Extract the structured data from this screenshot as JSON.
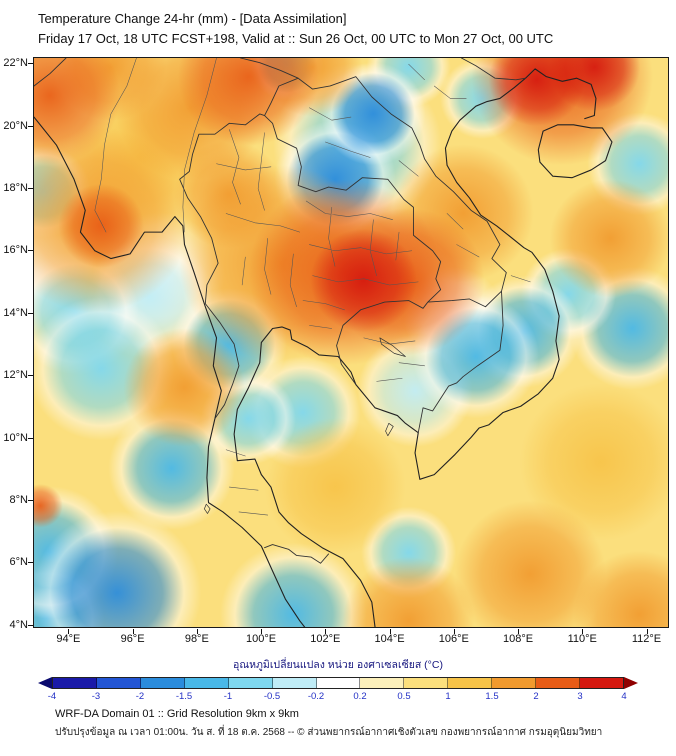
{
  "header": {
    "title_line1": "Temperature Change 24-hr (mm) - [Data Assimilation]",
    "title_line2": "Friday 17 Oct, 18 UTC FCST+198, Valid at :: Sun 26 Oct, 00 UTC to Mon 27 Oct, 00 UTC"
  },
  "footer": {
    "line1": "WRF-DA Domain 01 :: Grid Resolution 9km x 9km",
    "line2": "ปรับปรุงข้อมูล ณ เวลา 01:00น. วัน ส. ที่ 18 ต.ค. 2568 -- © ส่วนพยากรณ์อากาศเชิงตัวเลข กองพยากรณ์อากาศ กรมอุตุนิยมวิทยา"
  },
  "chart_data": {
    "type": "heatmap",
    "title": "Temperature Change 24-hr (mm) - [Data Assimilation]",
    "subtitle": "Friday 17 Oct, 18 UTC FCST+198, Valid at :: Sun 26 Oct, 00 UTC to Mon 27 Oct, 00 UTC",
    "region": "Thailand / Indochina WRF-DA Domain 01",
    "x_axis": {
      "range": [
        92.9,
        112.7
      ],
      "ticks": [
        94,
        96,
        98,
        100,
        102,
        104,
        106,
        108,
        110,
        112
      ],
      "tick_labels": [
        "94°E",
        "96°E",
        "98°E",
        "100°E",
        "102°E",
        "104°E",
        "106°E",
        "108°E",
        "110°E",
        "112°E"
      ]
    },
    "y_axis": {
      "range": [
        3.9,
        22.2
      ],
      "ticks": [
        4,
        6,
        8,
        10,
        12,
        14,
        16,
        18,
        20,
        22
      ],
      "tick_labels": [
        "4°N",
        "6°N",
        "8°N",
        "10°N",
        "12°N",
        "14°N",
        "16°N",
        "18°N",
        "20°N",
        "22°N"
      ]
    },
    "colorbar": {
      "label": "อุณหภูมิเปลี่ยนแปลง หน่วย องศาเซลเซียส (°C)",
      "ticks": [
        -4,
        -3,
        -2,
        -1.5,
        -1,
        -0.5,
        -0.2,
        0.2,
        0.5,
        1,
        1.5,
        2,
        3,
        4
      ],
      "segment_colors": [
        "#1a1aa8",
        "#2255d4",
        "#2b8cdc",
        "#49b8e8",
        "#7fd8ef",
        "#c0edf7",
        "#ffffff",
        "#fcf0bb",
        "#fbdf7d",
        "#f7c348",
        "#f19a2e",
        "#e85c16",
        "#d5180f"
      ],
      "under_color": "#0a0a6e",
      "over_color": "#8f0000"
    },
    "base_value": 0.7,
    "anomalies": [
      {
        "lon": 103.2,
        "lat": 15.05,
        "value": 3.5,
        "radius_deg": 1.05
      },
      {
        "lon": 102.6,
        "lat": 15.3,
        "value": 2.5,
        "radius_deg": 1.9
      },
      {
        "lon": 104.6,
        "lat": 15.0,
        "value": 2.2,
        "radius_deg": 1.5
      },
      {
        "lon": 100.6,
        "lat": 15.6,
        "value": 1.8,
        "radius_deg": 2.0
      },
      {
        "lon": 95.0,
        "lat": 16.8,
        "value": 2.8,
        "radius_deg": 0.85
      },
      {
        "lon": 94.8,
        "lat": 17.0,
        "value": 1.8,
        "radius_deg": 1.9
      },
      {
        "lon": 108.6,
        "lat": 21.5,
        "value": 3.3,
        "radius_deg": 0.95
      },
      {
        "lon": 110.4,
        "lat": 21.9,
        "value": 3.0,
        "radius_deg": 0.9
      },
      {
        "lon": 109.4,
        "lat": 21.6,
        "value": 2.0,
        "radius_deg": 1.8
      },
      {
        "lon": 99.6,
        "lat": 21.6,
        "value": 2.2,
        "radius_deg": 1.4
      },
      {
        "lon": 97.8,
        "lat": 20.6,
        "value": 1.6,
        "radius_deg": 1.5
      },
      {
        "lon": 93.4,
        "lat": 21.0,
        "value": 2.0,
        "radius_deg": 1.4
      },
      {
        "lon": 95.3,
        "lat": 21.9,
        "value": 1.8,
        "radius_deg": 1.1
      },
      {
        "lon": 101.6,
        "lat": 21.9,
        "value": 1.6,
        "radius_deg": 1.0
      },
      {
        "lon": 106.3,
        "lat": 17.2,
        "value": 1.6,
        "radius_deg": 1.4
      },
      {
        "lon": 110.9,
        "lat": 16.4,
        "value": 1.5,
        "radius_deg": 1.2
      },
      {
        "lon": 99.0,
        "lat": 17.8,
        "value": 1.6,
        "radius_deg": 1.1
      },
      {
        "lon": 96.2,
        "lat": 19.0,
        "value": 1.2,
        "radius_deg": 1.4
      },
      {
        "lon": 97.6,
        "lat": 11.6,
        "value": 1.5,
        "radius_deg": 1.2
      },
      {
        "lon": 102.3,
        "lat": 8.4,
        "value": 1.4,
        "radius_deg": 1.4
      },
      {
        "lon": 108.4,
        "lat": 5.6,
        "value": 1.8,
        "radius_deg": 1.5
      },
      {
        "lon": 104.6,
        "lat": 4.1,
        "value": 1.5,
        "radius_deg": 1.3
      },
      {
        "lon": 111.8,
        "lat": 4.3,
        "value": 1.6,
        "radius_deg": 1.3
      },
      {
        "lon": 110.6,
        "lat": 9.2,
        "value": 1.2,
        "radius_deg": 1.6
      },
      {
        "lon": 93.1,
        "lat": 7.8,
        "value": 2.6,
        "radius_deg": 0.45
      },
      {
        "lon": 103.5,
        "lat": 20.4,
        "value": -1.8,
        "radius_deg": 1.0
      },
      {
        "lon": 102.3,
        "lat": 18.3,
        "value": -1.6,
        "radius_deg": 1.15
      },
      {
        "lon": 103.0,
        "lat": 19.4,
        "value": -1.0,
        "radius_deg": 1.6
      },
      {
        "lon": 100.8,
        "lat": 22.0,
        "value": -1.2,
        "radius_deg": 0.7
      },
      {
        "lon": 106.9,
        "lat": 20.9,
        "value": -1.0,
        "radius_deg": 0.8
      },
      {
        "lon": 104.6,
        "lat": 21.9,
        "value": -0.8,
        "radius_deg": 0.8
      },
      {
        "lon": 99.0,
        "lat": 13.0,
        "value": -1.5,
        "radius_deg": 1.1
      },
      {
        "lon": 106.7,
        "lat": 12.6,
        "value": -1.5,
        "radius_deg": 1.2
      },
      {
        "lon": 108.2,
        "lat": 13.4,
        "value": -1.2,
        "radius_deg": 1.1
      },
      {
        "lon": 109.6,
        "lat": 14.6,
        "value": -0.8,
        "radius_deg": 0.9
      },
      {
        "lon": 111.6,
        "lat": 13.5,
        "value": -1.3,
        "radius_deg": 1.2
      },
      {
        "lon": 111.8,
        "lat": 18.8,
        "value": -0.9,
        "radius_deg": 1.0
      },
      {
        "lon": 95.0,
        "lat": 12.2,
        "value": -0.8,
        "radius_deg": 1.4
      },
      {
        "lon": 94.2,
        "lat": 14.0,
        "value": -0.7,
        "radius_deg": 1.2
      },
      {
        "lon": 93.2,
        "lat": 17.9,
        "value": -0.9,
        "radius_deg": 0.9
      },
      {
        "lon": 96.5,
        "lat": 14.5,
        "value": -0.5,
        "radius_deg": 1.2
      },
      {
        "lon": 97.2,
        "lat": 9.0,
        "value": -1.3,
        "radius_deg": 1.2
      },
      {
        "lon": 99.6,
        "lat": 10.6,
        "value": -0.8,
        "radius_deg": 0.9
      },
      {
        "lon": 101.3,
        "lat": 10.8,
        "value": -0.6,
        "radius_deg": 1.1
      },
      {
        "lon": 104.6,
        "lat": 6.3,
        "value": -0.6,
        "radius_deg": 0.9
      },
      {
        "lon": 95.5,
        "lat": 5.0,
        "value": -1.8,
        "radius_deg": 1.6
      },
      {
        "lon": 93.4,
        "lat": 6.3,
        "value": -1.5,
        "radius_deg": 1.3
      },
      {
        "lon": 93.3,
        "lat": 4.2,
        "value": -1.5,
        "radius_deg": 1.1
      },
      {
        "lon": 101.0,
        "lat": 4.3,
        "value": -1.2,
        "radius_deg": 1.4
      },
      {
        "lon": 104.8,
        "lat": 11.5,
        "value": -0.5,
        "radius_deg": 1.1
      },
      {
        "lon": 96.8,
        "lat": 15.2,
        "value": 0.0,
        "radius_deg": 1.3
      },
      {
        "lon": 106.0,
        "lat": 13.9,
        "value": 0.0,
        "radius_deg": 1.0
      },
      {
        "lon": 93.0,
        "lat": 15.3,
        "value": 0.0,
        "radius_deg": 1.2
      }
    ]
  }
}
